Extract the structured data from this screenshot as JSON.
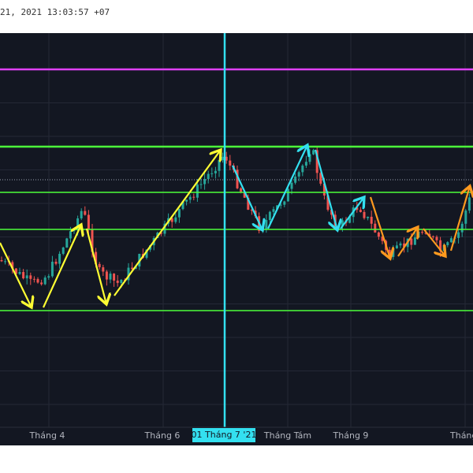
{
  "header": {
    "timestamp": "21, 2021 13:03:57 +07"
  },
  "x_axis": {
    "labels": [
      "Tháng 4",
      "Tháng 6",
      "Tháng Tám",
      "Tháng 9",
      "Tháng"
    ],
    "highlight": "01 Tháng 7 '21"
  }
}
